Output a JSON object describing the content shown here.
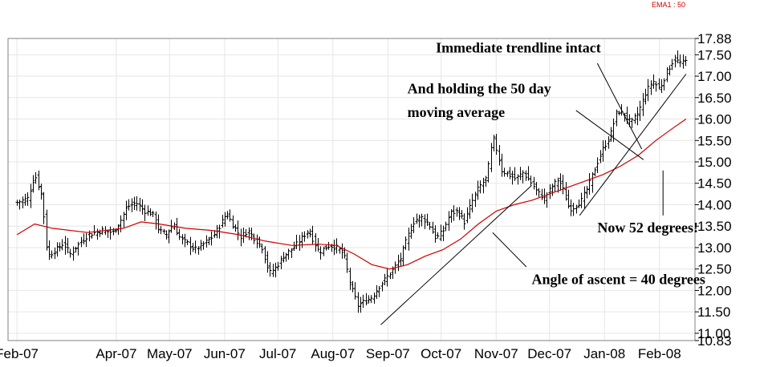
{
  "chart_data": {
    "type": "ohlc",
    "legend": {
      "label": "EMA1 : 50",
      "color": "#cc0000",
      "placement": "top-right"
    },
    "colors": {
      "bars": "#000000",
      "ema": "#cc0000",
      "grid": "#e6e6e6",
      "trendlines": "#000000"
    },
    "grid": true,
    "ylim": [
      10.83,
      17.88
    ],
    "y_ticks": [
      10.83,
      11.0,
      11.5,
      12.0,
      12.5,
      13.0,
      13.5,
      14.0,
      14.5,
      15.0,
      15.5,
      16.0,
      16.5,
      17.0,
      17.5,
      17.88
    ],
    "x_ticks": [
      {
        "label": "Feb-07",
        "day": 0
      },
      {
        "label": "Apr-07",
        "day": 56
      },
      {
        "label": "May-07",
        "day": 86
      },
      {
        "label": "Jun-07",
        "day": 117
      },
      {
        "label": "Jul-07",
        "day": 147
      },
      {
        "label": "Aug-07",
        "day": 178
      },
      {
        "label": "Sep-07",
        "day": 209
      },
      {
        "label": "Oct-07",
        "day": 239
      },
      {
        "label": "Nov-07",
        "day": 270
      },
      {
        "label": "Dec-07",
        "day": 300
      },
      {
        "label": "Jan-08",
        "day": 331
      },
      {
        "label": "Feb-08",
        "day": 362
      }
    ],
    "price_path": [
      [
        0,
        14.05
      ],
      [
        6,
        14.15
      ],
      [
        10,
        14.7
      ],
      [
        14,
        14.2
      ],
      [
        17,
        12.8
      ],
      [
        22,
        12.95
      ],
      [
        26,
        13.1
      ],
      [
        30,
        12.85
      ],
      [
        34,
        13.05
      ],
      [
        40,
        13.3
      ],
      [
        48,
        13.4
      ],
      [
        54,
        13.35
      ],
      [
        58,
        13.6
      ],
      [
        62,
        13.95
      ],
      [
        67,
        14.05
      ],
      [
        72,
        13.85
      ],
      [
        76,
        13.8
      ],
      [
        80,
        13.4
      ],
      [
        84,
        13.3
      ],
      [
        88,
        13.55
      ],
      [
        92,
        13.2
      ],
      [
        96,
        13.1
      ],
      [
        100,
        12.95
      ],
      [
        104,
        13.05
      ],
      [
        110,
        13.25
      ],
      [
        114,
        13.5
      ],
      [
        118,
        13.8
      ],
      [
        122,
        13.5
      ],
      [
        126,
        13.25
      ],
      [
        130,
        13.4
      ],
      [
        134,
        13.2
      ],
      [
        138,
        13.0
      ],
      [
        142,
        12.4
      ],
      [
        146,
        12.55
      ],
      [
        150,
        12.8
      ],
      [
        156,
        13.0
      ],
      [
        160,
        13.2
      ],
      [
        164,
        13.4
      ],
      [
        166,
        13.25
      ],
      [
        170,
        12.9
      ],
      [
        176,
        13.05
      ],
      [
        180,
        13.0
      ],
      [
        184,
        12.85
      ],
      [
        188,
        12.1
      ],
      [
        192,
        11.65
      ],
      [
        196,
        11.75
      ],
      [
        200,
        11.85
      ],
      [
        204,
        12.1
      ],
      [
        208,
        12.3
      ],
      [
        212,
        12.5
      ],
      [
        216,
        12.75
      ],
      [
        220,
        13.25
      ],
      [
        224,
        13.65
      ],
      [
        228,
        13.7
      ],
      [
        232,
        13.55
      ],
      [
        236,
        13.2
      ],
      [
        240,
        13.4
      ],
      [
        244,
        13.8
      ],
      [
        248,
        13.85
      ],
      [
        252,
        13.6
      ],
      [
        256,
        14.05
      ],
      [
        260,
        14.4
      ],
      [
        264,
        14.6
      ],
      [
        266,
        15.0
      ],
      [
        268,
        15.6
      ],
      [
        270,
        15.3
      ],
      [
        273,
        14.8
      ],
      [
        277,
        14.7
      ],
      [
        281,
        14.6
      ],
      [
        285,
        14.75
      ],
      [
        289,
        14.55
      ],
      [
        293,
        14.3
      ],
      [
        297,
        14.15
      ],
      [
        301,
        14.4
      ],
      [
        305,
        14.6
      ],
      [
        308,
        14.3
      ],
      [
        311,
        13.9
      ],
      [
        314,
        13.95
      ],
      [
        318,
        14.1
      ],
      [
        322,
        14.45
      ],
      [
        326,
        14.9
      ],
      [
        330,
        15.3
      ],
      [
        334,
        15.6
      ],
      [
        338,
        16.2
      ],
      [
        342,
        16.1
      ],
      [
        346,
        15.9
      ],
      [
        350,
        16.15
      ],
      [
        354,
        16.6
      ],
      [
        358,
        16.9
      ],
      [
        362,
        16.7
      ],
      [
        366,
        17.1
      ],
      [
        370,
        17.4
      ],
      [
        374,
        17.3
      ],
      [
        377,
        17.35
      ]
    ],
    "ema_path": [
      [
        0,
        13.3
      ],
      [
        10,
        13.55
      ],
      [
        20,
        13.45
      ],
      [
        40,
        13.35
      ],
      [
        60,
        13.45
      ],
      [
        70,
        13.6
      ],
      [
        80,
        13.55
      ],
      [
        95,
        13.45
      ],
      [
        110,
        13.4
      ],
      [
        125,
        13.3
      ],
      [
        140,
        13.15
      ],
      [
        155,
        13.05
      ],
      [
        170,
        13.08
      ],
      [
        180,
        13.05
      ],
      [
        190,
        12.85
      ],
      [
        200,
        12.6
      ],
      [
        210,
        12.5
      ],
      [
        220,
        12.6
      ],
      [
        230,
        12.8
      ],
      [
        240,
        12.95
      ],
      [
        250,
        13.2
      ],
      [
        260,
        13.55
      ],
      [
        270,
        13.85
      ],
      [
        280,
        14.0
      ],
      [
        290,
        14.1
      ],
      [
        300,
        14.25
      ],
      [
        310,
        14.4
      ],
      [
        320,
        14.55
      ],
      [
        330,
        14.7
      ],
      [
        340,
        14.9
      ],
      [
        350,
        15.15
      ],
      [
        360,
        15.5
      ],
      [
        370,
        15.8
      ],
      [
        377,
        16.0
      ]
    ],
    "trendlines": [
      {
        "from": [
          205,
          11.2
        ],
        "to": [
          290,
          14.45
        ]
      },
      {
        "from": [
          317,
          13.75
        ],
        "to": [
          377,
          17.05
        ]
      }
    ],
    "annotations": [
      {
        "text": "Immediate trendline intact",
        "at": [
          236,
          17.55
        ],
        "pointer_from": [
          327,
          17.3
        ],
        "pointer_to": [
          352,
          15.3
        ]
      },
      {
        "text": "And holding the 50 day",
        "at": [
          220,
          16.6
        ],
        "pointer_from": [
          315,
          16.2
        ],
        "pointer_to": [
          353,
          15.05
        ]
      },
      {
        "text": "moving average",
        "at": [
          220,
          16.05
        ]
      },
      {
        "text": "Now 52 degrees!",
        "at": [
          327,
          13.35
        ],
        "pointer_from": [
          364,
          13.75
        ],
        "pointer_to": [
          364,
          14.8
        ]
      },
      {
        "text": "Angle of ascent = 40 degrees",
        "at": [
          290,
          12.15
        ],
        "pointer_from": [
          287,
          12.55
        ],
        "pointer_to": [
          268,
          13.35
        ]
      }
    ]
  }
}
